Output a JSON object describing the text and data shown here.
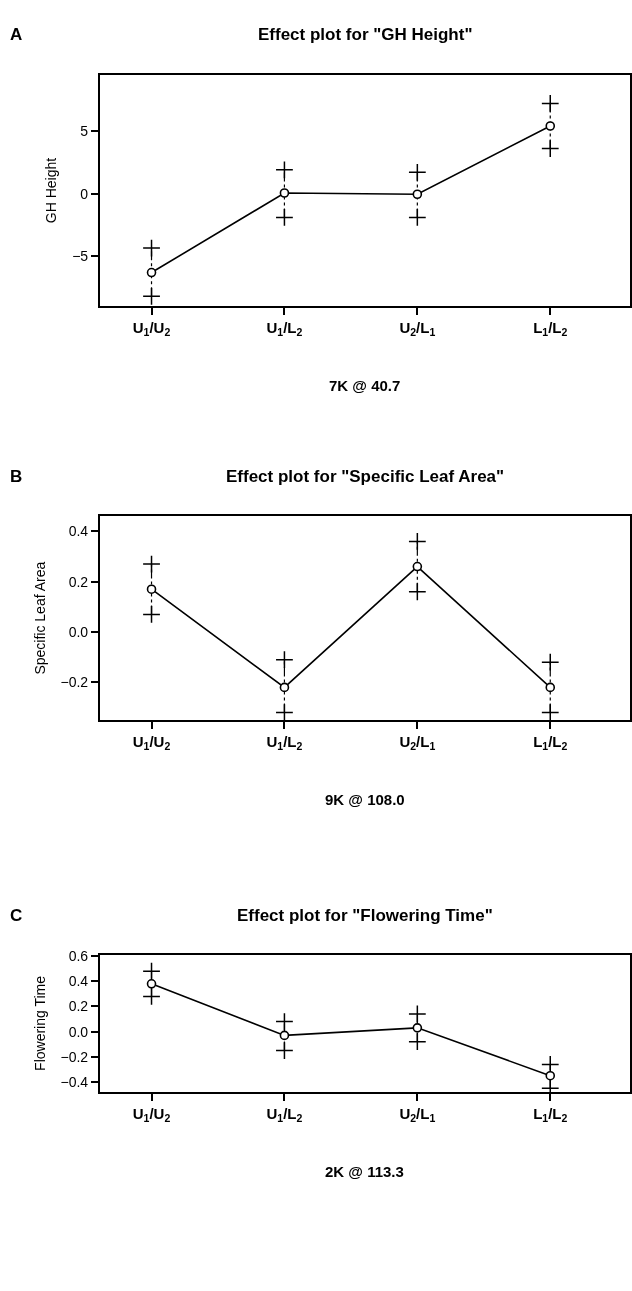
{
  "chart_data": [
    {
      "type": "line",
      "title": "Effect plot for \"GH Height\"",
      "xlabel": "7K @ 40.7",
      "ylabel": "GH Height",
      "annotations": [
        "A"
      ],
      "categories": [
        "U$_{1}$/U$_{2}$",
        "U$_{1}$/L$_{2}$",
        "U$_{2}$/L$_{1}$",
        "L$_{1}$/L$_{2}$"
      ],
      "series": [
        {
          "color": "#000000",
          "values": [
            -6.3,
            0.05,
            -0.05,
            5.4
          ],
          "errors": [
            [
              -8.2,
              -4.35
            ],
            [
              -1.9,
              1.9
            ],
            [
              -1.9,
              1.7
            ],
            [
              3.6,
              7.2
            ]
          ]
        }
      ],
      "ylim": [
        -9.0,
        9.5
      ],
      "yticks": [
        {
          "value": -5,
          "label": "−5"
        },
        0,
        5
      ],
      "marker": "circle",
      "line_style": "solid"
    },
    {
      "type": "line",
      "title": "Effect plot for \"Specific Leaf Area\"",
      "xlabel": "9K @ 108.0",
      "ylabel": "Specific Leaf Area",
      "annotations": [
        "B"
      ],
      "categories": [
        "U$_{1}$/U$_{2}$",
        "U$_{1}$/L$_{2}$",
        "U$_{2}$/L$_{1}$",
        "L$_{1}$/L$_{2}$"
      ],
      "series": [
        {
          "color": "#000000",
          "values": [
            0.17,
            -0.22,
            0.26,
            -0.22
          ],
          "errors": [
            [
              0.07,
              0.27
            ],
            [
              -0.32,
              -0.11
            ],
            [
              0.16,
              0.36
            ],
            [
              -0.32,
              -0.12
            ]
          ]
        }
      ],
      "ylim": [
        -0.35,
        0.46
      ],
      "yticks": [
        {
          "value": -0.2,
          "label": "−0.2"
        },
        {
          "value": 0,
          "label": "0.0"
        },
        0.2,
        0.4
      ],
      "marker": "circle",
      "line_style": "solid"
    },
    {
      "type": "line",
      "title": "Effect plot for \"Flowering Time\"",
      "xlabel": "2K @ 113.3",
      "ylabel": "Flowering Time",
      "annotations": [
        "C"
      ],
      "categories": [
        "U$_{1}$/U$_{2}$",
        "U$_{1}$/L$_{2}$",
        "U$_{2}$/L$_{1}$",
        "L$_{1}$/L$_{2}$"
      ],
      "series": [
        {
          "color": "#000000",
          "values": [
            0.38,
            -0.03,
            0.03,
            -0.35
          ],
          "errors": [
            [
              0.28,
              0.48
            ],
            [
              -0.15,
              0.08
            ],
            [
              -0.08,
              0.14
            ],
            [
              -0.45,
              -0.26
            ]
          ]
        }
      ],
      "ylim": [
        -0.48,
        0.61
      ],
      "yticks": [
        {
          "value": -0.4,
          "label": "−0.4"
        },
        {
          "value": -0.2,
          "label": "−0.2"
        },
        {
          "value": 0,
          "label": "0.0"
        },
        0.2,
        0.4,
        0.6
      ],
      "marker": "circle",
      "line_style": "solid"
    }
  ]
}
